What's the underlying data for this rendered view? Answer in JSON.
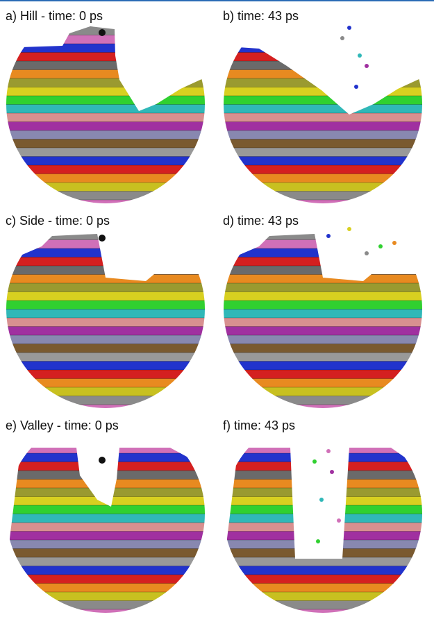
{
  "panels": [
    {
      "label": "a) Hill - time: 0 ps"
    },
    {
      "label": "b) time: 43 ps"
    },
    {
      "label": "c) Side - time: 0 ps"
    },
    {
      "label": "d) time: 43 ps"
    },
    {
      "label": "e) Valley - time: 0 ps"
    },
    {
      "label": "f) time: 43 ps"
    }
  ]
}
